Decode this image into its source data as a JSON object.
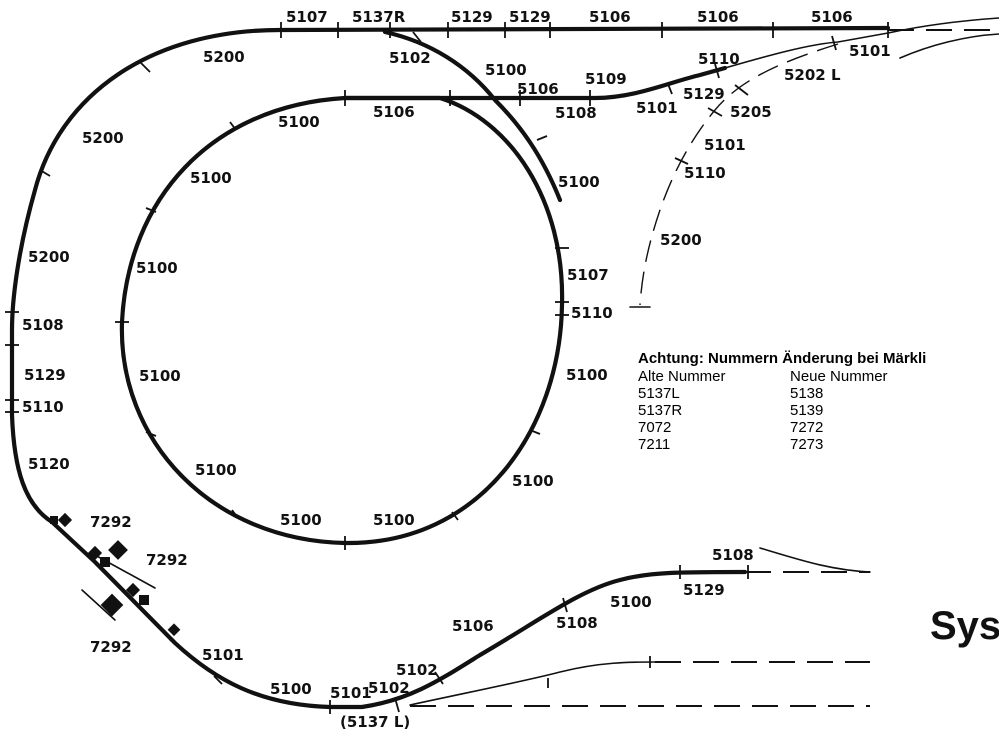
{
  "track_numbers": [
    "5107",
    "5137R",
    "5129",
    "5129",
    "5106",
    "5106",
    "5106",
    "5200",
    "5102",
    "5100",
    "5106",
    "5109",
    "5110",
    "5101",
    "5202 L",
    "5100",
    "5106",
    "5108",
    "5101",
    "5129",
    "5205",
    "5200",
    "5101",
    "5110",
    "5100",
    "5100",
    "5200",
    "5200",
    "5100",
    "5107",
    "5108",
    "5110",
    "5129",
    "5100",
    "5100",
    "5110",
    "5120",
    "5100",
    "5100",
    "5100",
    "5100",
    "5100",
    "7292",
    "7292",
    "7292",
    "5106",
    "5108",
    "5100",
    "5129",
    "5108",
    "5101",
    "5100",
    "5101",
    "5102",
    "5102",
    "(5137 L)"
  ],
  "note": {
    "title": "Achtung: Nummern Änderung bei Märkli",
    "header": [
      "Alte Nummer",
      "Neue Nummer"
    ],
    "rows": [
      [
        "5137L",
        "5138"
      ],
      [
        "5137R",
        "5139"
      ],
      [
        "7072",
        "7272"
      ],
      [
        "7211",
        "7273"
      ]
    ]
  },
  "system_label": "Sys"
}
